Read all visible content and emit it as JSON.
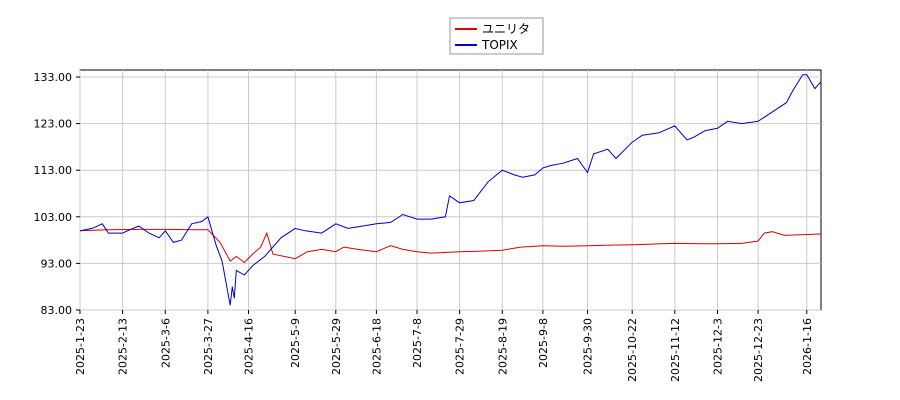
{
  "chart_data": {
    "type": "line",
    "title": "",
    "xlabel": "",
    "ylabel": "",
    "ylim": [
      83.0,
      134.5
    ],
    "y_ticks": [
      "83.00",
      "93.00",
      "103.00",
      "113.00",
      "123.00",
      "133.00"
    ],
    "x_ticks": [
      "2025-1-23",
      "2025-2-13",
      "2025-3-6",
      "2025-3-27",
      "2025-4-16",
      "2025-5-9",
      "2025-5-29",
      "2025-6-18",
      "2025-7-8",
      "2025-7-29",
      "2025-8-19",
      "2025-9-8",
      "2025-9-30",
      "2025-10-22",
      "2025-11-12",
      "2025-12-3",
      "2025-12-23",
      "2026-1-16"
    ],
    "grid": true,
    "legend_position": "top-center",
    "series": [
      {
        "name": "ユニリタ",
        "color": "#dd0000",
        "points": [
          [
            "2025-01-23",
            100.0
          ],
          [
            "2025-02-06",
            100.2
          ],
          [
            "2025-02-20",
            100.3
          ],
          [
            "2025-03-06",
            100.3
          ],
          [
            "2025-03-20",
            100.2
          ],
          [
            "2025-03-27",
            100.2
          ],
          [
            "2025-04-02",
            97.5
          ],
          [
            "2025-04-07",
            93.5
          ],
          [
            "2025-04-10",
            94.5
          ],
          [
            "2025-04-14",
            93.2
          ],
          [
            "2025-04-18",
            95.0
          ],
          [
            "2025-04-22",
            96.5
          ],
          [
            "2025-04-25",
            99.5
          ],
          [
            "2025-04-28",
            95.0
          ],
          [
            "2025-05-09",
            94.0
          ],
          [
            "2025-05-15",
            95.5
          ],
          [
            "2025-05-22",
            96.0
          ],
          [
            "2025-05-29",
            95.5
          ],
          [
            "2025-06-02",
            96.5
          ],
          [
            "2025-06-09",
            96.0
          ],
          [
            "2025-06-18",
            95.5
          ],
          [
            "2025-06-25",
            96.8
          ],
          [
            "2025-07-01",
            96.0
          ],
          [
            "2025-07-08",
            95.5
          ],
          [
            "2025-07-15",
            95.2
          ],
          [
            "2025-07-29",
            95.5
          ],
          [
            "2025-08-07",
            95.6
          ],
          [
            "2025-08-19",
            95.8
          ],
          [
            "2025-08-28",
            96.5
          ],
          [
            "2025-09-08",
            96.8
          ],
          [
            "2025-09-18",
            96.7
          ],
          [
            "2025-09-30",
            96.8
          ],
          [
            "2025-10-08",
            96.9
          ],
          [
            "2025-10-22",
            97.0
          ],
          [
            "2025-11-05",
            97.2
          ],
          [
            "2025-11-12",
            97.3
          ],
          [
            "2025-11-25",
            97.2
          ],
          [
            "2025-12-03",
            97.2
          ],
          [
            "2025-12-15",
            97.3
          ],
          [
            "2025-12-23",
            97.8
          ],
          [
            "2025-12-26",
            99.5
          ],
          [
            "2025-12-30",
            99.8
          ],
          [
            "2026-01-05",
            99.0
          ],
          [
            "2026-01-16",
            99.2
          ],
          [
            "2026-01-23",
            99.3
          ]
        ]
      },
      {
        "name": "TOPIX",
        "color": "#0000cc",
        "points": [
          [
            "2025-01-23",
            100.0
          ],
          [
            "2025-01-29",
            100.5
          ],
          [
            "2025-02-03",
            101.5
          ],
          [
            "2025-02-06",
            99.5
          ],
          [
            "2025-02-13",
            99.5
          ],
          [
            "2025-02-18",
            100.5
          ],
          [
            "2025-02-21",
            101.0
          ],
          [
            "2025-02-26",
            99.5
          ],
          [
            "2025-03-03",
            98.5
          ],
          [
            "2025-03-06",
            100.0
          ],
          [
            "2025-03-10",
            97.5
          ],
          [
            "2025-03-14",
            98.0
          ],
          [
            "2025-03-19",
            101.5
          ],
          [
            "2025-03-24",
            102.0
          ],
          [
            "2025-03-27",
            103.0
          ],
          [
            "2025-03-31",
            97.0
          ],
          [
            "2025-04-03",
            93.5
          ],
          [
            "2025-04-07",
            84.0
          ],
          [
            "2025-04-08",
            88.0
          ],
          [
            "2025-04-09",
            85.5
          ],
          [
            "2025-04-10",
            91.5
          ],
          [
            "2025-04-14",
            90.5
          ],
          [
            "2025-04-18",
            92.5
          ],
          [
            "2025-04-24",
            94.5
          ],
          [
            "2025-05-02",
            98.5
          ],
          [
            "2025-05-09",
            100.5
          ],
          [
            "2025-05-14",
            100.0
          ],
          [
            "2025-05-22",
            99.5
          ],
          [
            "2025-05-29",
            101.5
          ],
          [
            "2025-06-04",
            100.5
          ],
          [
            "2025-06-11",
            101.0
          ],
          [
            "2025-06-18",
            101.5
          ],
          [
            "2025-06-25",
            101.8
          ],
          [
            "2025-07-01",
            103.5
          ],
          [
            "2025-07-08",
            102.5
          ],
          [
            "2025-07-15",
            102.5
          ],
          [
            "2025-07-22",
            103.0
          ],
          [
            "2025-07-24",
            107.5
          ],
          [
            "2025-07-29",
            106.0
          ],
          [
            "2025-08-05",
            106.5
          ],
          [
            "2025-08-12",
            110.5
          ],
          [
            "2025-08-19",
            113.0
          ],
          [
            "2025-08-25",
            112.0
          ],
          [
            "2025-08-29",
            111.5
          ],
          [
            "2025-09-04",
            112.0
          ],
          [
            "2025-09-08",
            113.5
          ],
          [
            "2025-09-12",
            114.0
          ],
          [
            "2025-09-18",
            114.5
          ],
          [
            "2025-09-25",
            115.5
          ],
          [
            "2025-09-30",
            112.5
          ],
          [
            "2025-10-03",
            116.5
          ],
          [
            "2025-10-10",
            117.5
          ],
          [
            "2025-10-14",
            115.5
          ],
          [
            "2025-10-22",
            119.0
          ],
          [
            "2025-10-27",
            120.5
          ],
          [
            "2025-11-04",
            121.0
          ],
          [
            "2025-11-12",
            122.5
          ],
          [
            "2025-11-18",
            119.5
          ],
          [
            "2025-11-21",
            120.0
          ],
          [
            "2025-11-27",
            121.5
          ],
          [
            "2025-12-03",
            122.0
          ],
          [
            "2025-12-08",
            123.5
          ],
          [
            "2025-12-15",
            123.0
          ],
          [
            "2025-12-23",
            123.5
          ],
          [
            "2025-12-30",
            125.5
          ],
          [
            "2026-01-06",
            127.5
          ],
          [
            "2026-01-09",
            130.0
          ],
          [
            "2026-01-14",
            133.5
          ],
          [
            "2026-01-16",
            133.5
          ],
          [
            "2026-01-20",
            130.5
          ],
          [
            "2026-01-23",
            132.0
          ]
        ]
      }
    ]
  }
}
